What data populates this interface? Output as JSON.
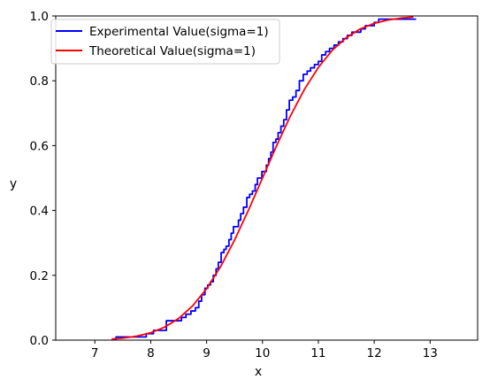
{
  "chart_data": {
    "type": "line",
    "title": "",
    "xlabel": "x",
    "ylabel": "y",
    "xlim": [
      6.3,
      13.85
    ],
    "ylim": [
      0,
      1.0
    ],
    "x_ticks": [
      7,
      8,
      9,
      10,
      11,
      12,
      13
    ],
    "y_ticks": [
      0.0,
      0.2,
      0.4,
      0.6,
      0.8,
      1.0
    ],
    "x_tick_labels": [
      "7",
      "8",
      "9",
      "10",
      "11",
      "12",
      "13"
    ],
    "y_tick_labels": [
      "0.0",
      "0.2",
      "0.4",
      "0.6",
      "0.8",
      "1.0"
    ],
    "grid": false,
    "legend_position": "upper-left",
    "series": [
      {
        "name": "Experimental Value(sigma=1)",
        "color": "#0000ff",
        "step": true,
        "x": [
          7.33,
          7.38,
          7.85,
          7.92,
          7.98,
          8.05,
          8.2,
          8.28,
          8.4,
          8.55,
          8.63,
          8.72,
          8.8,
          8.86,
          8.91,
          8.97,
          9.02,
          9.07,
          9.12,
          9.17,
          9.21,
          9.26,
          9.31,
          9.35,
          9.4,
          9.44,
          9.48,
          9.53,
          9.57,
          9.61,
          9.66,
          9.72,
          9.77,
          9.82,
          9.87,
          9.91,
          9.95,
          9.99,
          10.03,
          10.07,
          10.11,
          10.15,
          10.19,
          10.24,
          10.28,
          10.33,
          10.38,
          10.43,
          10.48,
          10.54,
          10.6,
          10.66,
          10.73,
          10.8,
          10.86,
          10.93,
          11.0,
          11.06,
          11.13,
          11.2,
          11.28,
          11.36,
          11.44,
          11.52,
          11.6,
          11.68,
          11.76,
          11.84,
          11.92,
          12.0,
          12.08,
          12.15,
          12.22,
          12.75
        ],
        "y": [
          0.0,
          0.01,
          0.01,
          0.02,
          0.02,
          0.03,
          0.03,
          0.06,
          0.06,
          0.07,
          0.08,
          0.09,
          0.1,
          0.12,
          0.14,
          0.16,
          0.17,
          0.18,
          0.2,
          0.22,
          0.24,
          0.27,
          0.28,
          0.29,
          0.31,
          0.33,
          0.35,
          0.35,
          0.37,
          0.39,
          0.41,
          0.44,
          0.45,
          0.46,
          0.48,
          0.5,
          0.5,
          0.52,
          0.52,
          0.54,
          0.56,
          0.58,
          0.61,
          0.62,
          0.64,
          0.66,
          0.68,
          0.71,
          0.74,
          0.75,
          0.77,
          0.8,
          0.82,
          0.83,
          0.84,
          0.85,
          0.86,
          0.88,
          0.89,
          0.9,
          0.91,
          0.92,
          0.93,
          0.94,
          0.95,
          0.95,
          0.96,
          0.97,
          0.97,
          0.98,
          0.99,
          0.99,
          0.99,
          0.99
        ]
      },
      {
        "name": "Theoretical Value(sigma=1)",
        "color": "#ff0000",
        "x": [
          7.3,
          7.5,
          7.75,
          8.0,
          8.25,
          8.5,
          8.75,
          9.0,
          9.25,
          9.5,
          9.75,
          10.0,
          10.25,
          10.5,
          10.75,
          11.0,
          11.25,
          11.5,
          11.75,
          12.0,
          12.25,
          12.5,
          12.7
        ],
        "y": [
          0.0035,
          0.0062,
          0.0122,
          0.0228,
          0.0401,
          0.0668,
          0.1056,
          0.1587,
          0.2266,
          0.3085,
          0.4013,
          0.5,
          0.5987,
          0.6915,
          0.7734,
          0.8413,
          0.8944,
          0.9332,
          0.9599,
          0.9772,
          0.9878,
          0.9938,
          0.9965
        ]
      }
    ]
  }
}
